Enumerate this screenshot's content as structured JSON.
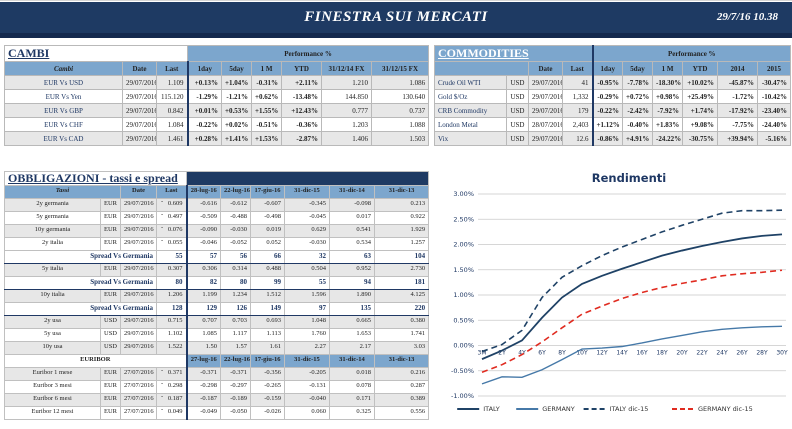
{
  "header": {
    "title": "FINESTRA SUI MERCATI",
    "datetime": "29/7/16 10.38"
  },
  "colors": {
    "banner_navy": "#1E3A63",
    "header_blue": "#7CA6CD",
    "positive": "#008000",
    "negative": "#C00000",
    "stripe": "#E7E7E7"
  },
  "cambi": {
    "title": "CAMBI",
    "performance_label": "Performance  %",
    "columns": [
      "Cambi",
      "Date",
      "Last",
      "1day",
      "5day",
      "1 M",
      "YTD",
      "31/12/14 FX",
      "31/12/15  FX"
    ],
    "rows": [
      {
        "name": "EUR Vs USD",
        "date": "29/07/2016",
        "last": "1.109",
        "perf": [
          "+0.13%",
          "+1.04%",
          "-0.31%",
          "+2.11%"
        ],
        "fx14": "1.210",
        "fx15": "1.086",
        "shade": true
      },
      {
        "name": "EUR Vs Yen",
        "date": "29/07/2016",
        "last": "115.120",
        "perf": [
          "-1.29%",
          "-1.21%",
          "+0.62%",
          "-13.48%"
        ],
        "fx14": "144.850",
        "fx15": "130.640",
        "shade": false
      },
      {
        "name": "EUR Vs GBP",
        "date": "29/07/2016",
        "last": "0.842",
        "perf": [
          "+0.01%",
          "+0.53%",
          "+1.55%",
          "+12.43%"
        ],
        "fx14": "0.777",
        "fx15": "0.737",
        "shade": true
      },
      {
        "name": "EUR Vs CHF",
        "date": "29/07/2016",
        "last": "1.084",
        "perf": [
          "-0.22%",
          "+0.02%",
          "-0.51%",
          "-0.36%"
        ],
        "fx14": "1.203",
        "fx15": "1.088",
        "shade": false
      },
      {
        "name": "EUR Vs CAD",
        "date": "29/07/2016",
        "last": "1.461",
        "perf": [
          "+0.28%",
          "+1.41%",
          "+1.53%",
          "-2.87%"
        ],
        "fx14": "1.406",
        "fx15": "1.503",
        "shade": true
      }
    ]
  },
  "commodities": {
    "title": "COMMODITIES",
    "performance_label": "Performance  %",
    "columns": [
      "Date",
      "Last",
      "1day",
      "5day",
      "1 M",
      "YTD",
      "2014",
      "2015"
    ],
    "rows": [
      {
        "name": "Crude Oil WTI",
        "ccy": "USD",
        "date": "29/07/2016",
        "last": "41",
        "perf": [
          "-0.95%",
          "-7.78%",
          "-18.30%",
          "+10.02%",
          "-45.87%",
          "-30.47%"
        ],
        "shade": true
      },
      {
        "name": "Gold $/Oz",
        "ccy": "USD",
        "date": "29/07/2016",
        "last": "1,332",
        "perf": [
          "-0.29%",
          "+0.72%",
          "+0.98%",
          "+25.49%",
          "-1.72%",
          "-10.42%"
        ],
        "shade": false
      },
      {
        "name": "CRB Commodity",
        "ccy": "USD",
        "date": "29/07/2016",
        "last": "179",
        "perf": [
          "-0.22%",
          "-2.42%",
          "-7.92%",
          "+1.74%",
          "-17.92%",
          "-23.40%"
        ],
        "shade": true
      },
      {
        "name": "London Metal",
        "ccy": "USD",
        "date": "28/07/2016",
        "last": "2,403",
        "perf": [
          "+1.12%",
          "-0.40%",
          "+1.83%",
          "+9.08%",
          "-7.75%",
          "-24.40%"
        ],
        "shade": false
      },
      {
        "name": "Vix",
        "ccy": "USD",
        "date": "29/07/2016",
        "last": "12.6",
        "perf": [
          "-0.86%",
          "+4.91%",
          "-24.22%",
          "-30.75%",
          "+39.94%",
          "-5.16%"
        ],
        "shade": true
      }
    ]
  },
  "obbligazioni": {
    "title": "OBBLIGAZIONI - tassi e spread",
    "columns": [
      "Tassi",
      "Date",
      "Last",
      "28-lug-16",
      "22-lug-16",
      "17-giu-16",
      "31-dic-15",
      "31-dic-14",
      "31-dic-13"
    ],
    "spread_label": "Spread Vs Germania",
    "rows": [
      {
        "type": "data",
        "name": "2y germania",
        "ccy": "EUR",
        "date": "29/07/2016",
        "last": "- 0.609",
        "vals": [
          "-0.616",
          "-0.612",
          "-0.607",
          "-0.345",
          "-0.098",
          "0.213"
        ],
        "shade": true
      },
      {
        "type": "data",
        "name": "5y germania",
        "ccy": "EUR",
        "date": "29/07/2016",
        "last": "- 0.497",
        "vals": [
          "-0.509",
          "-0.488",
          "-0.498",
          "-0.045",
          "0.017",
          "0.922"
        ],
        "shade": false
      },
      {
        "type": "data",
        "name": "10y germania",
        "ccy": "EUR",
        "date": "29/07/2016",
        "last": "- 0.076",
        "vals": [
          "-0.090",
          "-0.030",
          "0.019",
          "0.629",
          "0.541",
          "1.929"
        ],
        "shade": true
      },
      {
        "type": "data",
        "name": "2y italia",
        "ccy": "EUR",
        "date": "29/07/2016",
        "last": "- 0.055",
        "vals": [
          "-0.046",
          "-0.052",
          "0.052",
          "-0.030",
          "0.534",
          "1.257"
        ],
        "shade": false
      },
      {
        "type": "spread",
        "last": "55",
        "vals": [
          "57",
          "56",
          "66",
          "32",
          "63",
          "104"
        ]
      },
      {
        "type": "data",
        "name": "5y italia",
        "ccy": "EUR",
        "date": "29/07/2016",
        "last": "0.307",
        "vals": [
          "0.306",
          "0.314",
          "0.488",
          "0.504",
          "0.952",
          "2.730"
        ],
        "shade": true
      },
      {
        "type": "spread",
        "last": "80",
        "vals": [
          "82",
          "80",
          "99",
          "55",
          "94",
          "181"
        ]
      },
      {
        "type": "data",
        "name": "10y italia",
        "ccy": "EUR",
        "date": "29/07/2016",
        "last": "1.206",
        "vals": [
          "1.199",
          "1.234",
          "1.512",
          "1.596",
          "1.890",
          "4.125"
        ],
        "shade": true
      },
      {
        "type": "spread",
        "last": "128",
        "vals": [
          "129",
          "126",
          "149",
          "97",
          "135",
          "220"
        ]
      },
      {
        "type": "data",
        "name": "2y usa",
        "ccy": "USD",
        "date": "29/07/2016",
        "last": "0.715",
        "vals": [
          "0.707",
          "0.703",
          "0.693",
          "1.048",
          "0.665",
          "0.380"
        ],
        "shade": true
      },
      {
        "type": "data",
        "name": "5y usa",
        "ccy": "USD",
        "date": "29/07/2016",
        "last": "1.102",
        "vals": [
          "1.085",
          "1.117",
          "1.113",
          "1.760",
          "1.653",
          "1.741"
        ],
        "shade": false
      },
      {
        "type": "data",
        "name": "10y usa",
        "ccy": "USD",
        "date": "29/07/2016",
        "last": "1.522",
        "vals": [
          "1.50",
          "1.57",
          "1.61",
          "2.27",
          "2.17",
          "3.03"
        ],
        "shade": true
      }
    ]
  },
  "euribor": {
    "label": "EURIBOR",
    "columns": [
      "27-lug-16",
      "22-lug-16",
      "17-giu-16",
      "31-dic-15",
      "31-dic-14",
      "31-dic-13"
    ],
    "rows": [
      {
        "name": "Euribor 1 mese",
        "ccy": "EUR",
        "date": "27/07/2016",
        "last": "- 0.371",
        "vals": [
          "-0.371",
          "-0.371",
          "-0.356",
          "-0.205",
          "0.018",
          "0.216"
        ],
        "shade": true
      },
      {
        "name": "Euribor 3 mesi",
        "ccy": "EUR",
        "date": "27/07/2016",
        "last": "- 0.298",
        "vals": [
          "-0.298",
          "-0.297",
          "-0.265",
          "-0.131",
          "0.078",
          "0.287"
        ],
        "shade": false
      },
      {
        "name": "Euribor 6 mesi",
        "ccy": "EUR",
        "date": "27/07/2016",
        "last": "- 0.187",
        "vals": [
          "-0.187",
          "-0.189",
          "-0.159",
          "-0.040",
          "0.171",
          "0.389"
        ],
        "shade": true
      },
      {
        "name": "Euribor 12 mesi",
        "ccy": "EUR",
        "date": "27/07/2016",
        "last": "- 0.049",
        "vals": [
          "-0.049",
          "-0.050",
          "-0.026",
          "0.060",
          "0.325",
          "0.556"
        ],
        "shade": false
      }
    ]
  },
  "chart_data": {
    "type": "line",
    "title": "Rendimenti",
    "xlabel": "",
    "ylabel": "",
    "ylim": [
      -1.0,
      3.0
    ],
    "ytick_step": 0.5,
    "ytick_suffix": "%",
    "grid": true,
    "legend_position": "bottom",
    "categories": [
      "3M",
      "2Y",
      "4Y",
      "6Y",
      "8Y",
      "10Y",
      "12Y",
      "14Y",
      "16Y",
      "18Y",
      "20Y",
      "22Y",
      "24Y",
      "26Y",
      "28Y",
      "30Y"
    ],
    "series": [
      {
        "name": "ITALY",
        "color": "#1F4266",
        "dashed": false,
        "width": 1.8,
        "values": [
          -0.27,
          -0.1,
          0.1,
          0.55,
          0.95,
          1.22,
          1.38,
          1.52,
          1.65,
          1.78,
          1.88,
          1.97,
          2.05,
          2.12,
          2.17,
          2.2
        ]
      },
      {
        "name": "GERMANY",
        "color": "#4679A8",
        "dashed": false,
        "width": 1.4,
        "values": [
          -0.76,
          -0.62,
          -0.63,
          -0.48,
          -0.28,
          -0.07,
          -0.05,
          -0.02,
          0.05,
          0.13,
          0.2,
          0.27,
          0.32,
          0.35,
          0.37,
          0.38
        ]
      },
      {
        "name": "ITALY dic-15",
        "color": "#1F4266",
        "dashed": true,
        "width": 1.6,
        "values": [
          -0.12,
          0.02,
          0.3,
          0.95,
          1.35,
          1.58,
          1.78,
          1.95,
          2.1,
          2.25,
          2.38,
          2.5,
          2.62,
          2.67,
          2.67,
          2.68
        ]
      },
      {
        "name": "GERMANY dic-15",
        "color": "#E02B20",
        "dashed": true,
        "width": 1.6,
        "values": [
          -0.53,
          -0.38,
          -0.18,
          0.07,
          0.35,
          0.62,
          0.78,
          0.93,
          1.05,
          1.15,
          1.23,
          1.3,
          1.38,
          1.42,
          1.45,
          1.49
        ]
      }
    ]
  }
}
